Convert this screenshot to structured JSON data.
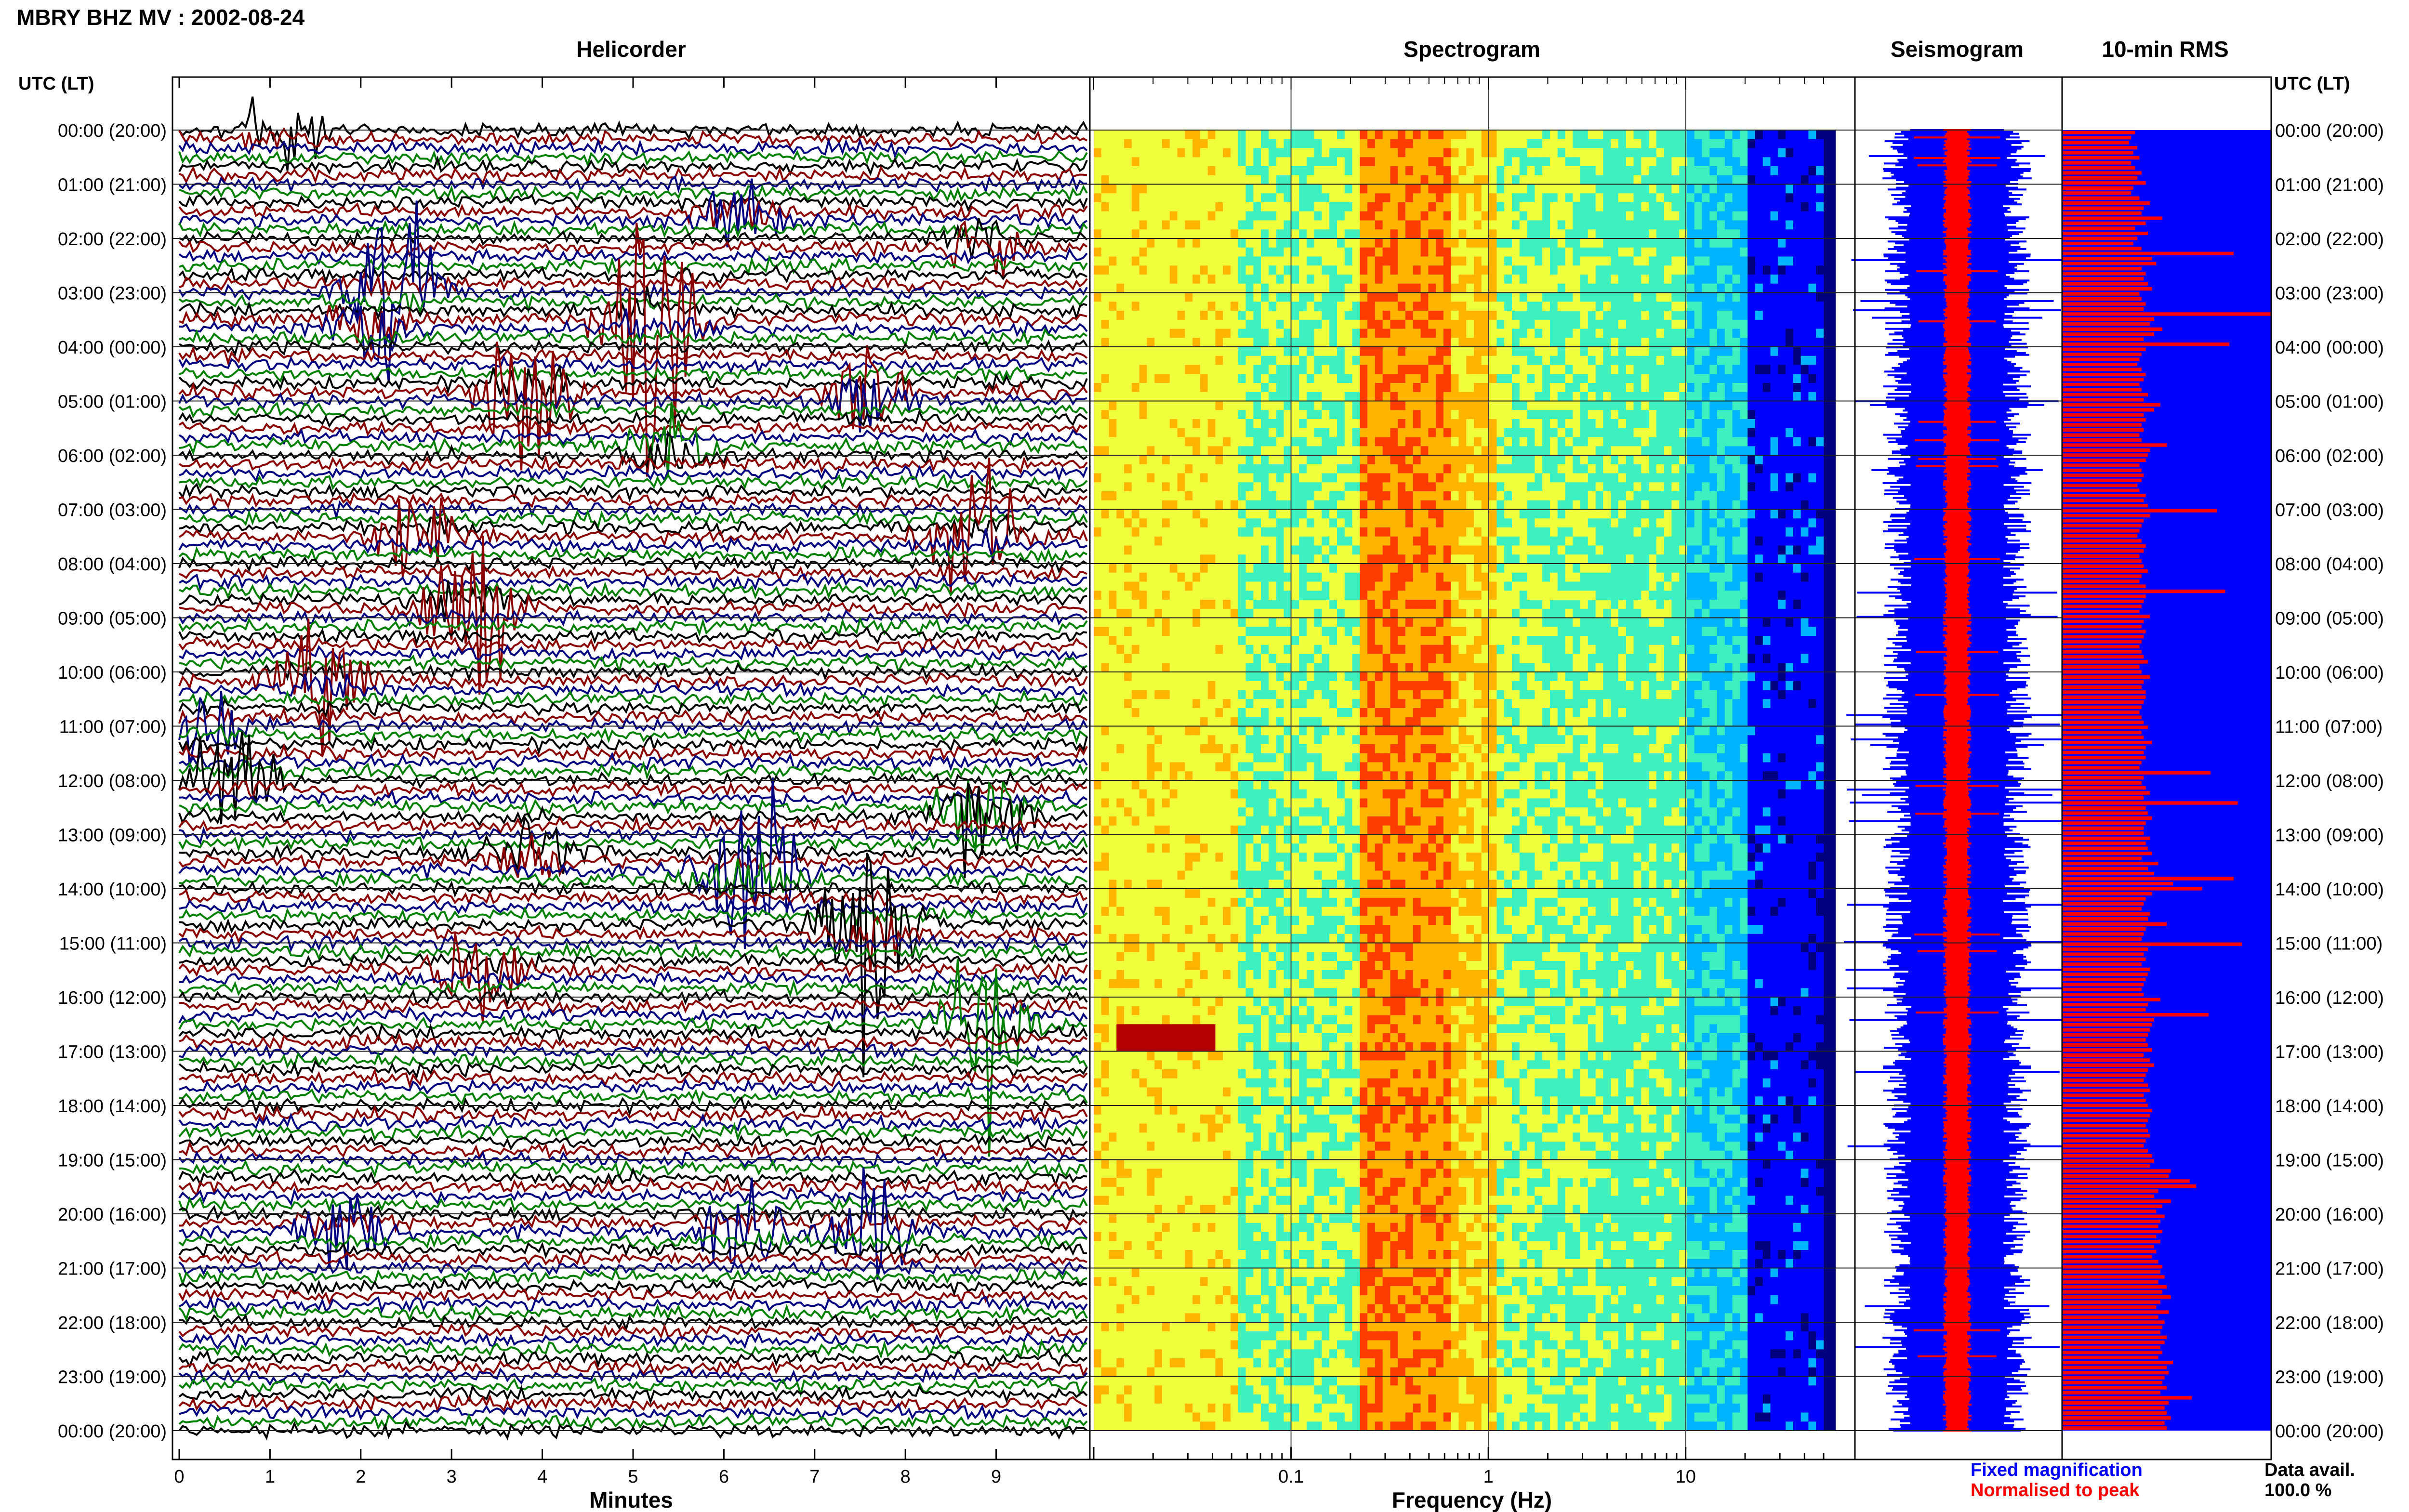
{
  "header": {
    "title": "MBRY BHZ MV : 2002-08-24"
  },
  "chart_data": {
    "type": "heatmap",
    "panels": {
      "helicorder": "Helicorder",
      "spectrogram": "Spectrogram",
      "seismogram": "Seismogram",
      "rms": "10-min RMS"
    },
    "utc_label_left": "UTC (LT)",
    "utc_label_right": "UTC (LT)",
    "time_rows": [
      "00:00 (20:00)",
      "01:00 (21:00)",
      "02:00 (22:00)",
      "03:00 (23:00)",
      "04:00 (00:00)",
      "05:00 (01:00)",
      "06:00 (02:00)",
      "07:00 (03:00)",
      "08:00 (04:00)",
      "09:00 (05:00)",
      "10:00 (06:00)",
      "11:00 (07:00)",
      "12:00 (08:00)",
      "13:00 (09:00)",
      "14:00 (10:00)",
      "15:00 (11:00)",
      "16:00 (12:00)",
      "17:00 (13:00)",
      "18:00 (14:00)",
      "19:00 (15:00)",
      "20:00 (16:00)",
      "21:00 (17:00)",
      "22:00 (18:00)",
      "23:00 (19:00)",
      "00:00 (20:00)"
    ],
    "helicorder_x": {
      "label": "Minutes",
      "ticks": [
        "0",
        "1",
        "2",
        "3",
        "4",
        "5",
        "6",
        "7",
        "8",
        "9"
      ],
      "range": [
        0,
        10
      ]
    },
    "spectrogram_x": {
      "label": "Frequency (Hz)",
      "scale": "log",
      "ticks": [
        "0.1",
        "1",
        "10"
      ],
      "range": [
        0.01,
        50
      ]
    },
    "helicorder_events": [
      {
        "hour": 0.0,
        "minute": 1.1,
        "amp": 0.9,
        "color": "#000000"
      },
      {
        "hour": 1.6,
        "minute": 6.2,
        "amp": 0.9,
        "color": "#000000"
      },
      {
        "hour": 2.1,
        "minute": 8.9,
        "amp": 1.0,
        "color": "#8b0000"
      },
      {
        "hour": 3.0,
        "minute": 2.4,
        "amp": 1.6,
        "color": "#8b0000"
      },
      {
        "hour": 3.6,
        "minute": 2.1,
        "amp": 1.1,
        "color": "#008000"
      },
      {
        "hour": 3.5,
        "minute": 5.2,
        "amp": 3.0,
        "color": "#000000"
      },
      {
        "hour": 4.8,
        "minute": 3.8,
        "amp": 1.6,
        "color": "#000080"
      },
      {
        "hour": 4.9,
        "minute": 7.6,
        "amp": 1.2,
        "color": "#008000"
      },
      {
        "hour": 5.9,
        "minute": 5.4,
        "amp": 1.0,
        "color": "#000000"
      },
      {
        "hour": 7.5,
        "minute": 8.8,
        "amp": 1.6,
        "color": "#8b0000"
      },
      {
        "hour": 7.5,
        "minute": 2.7,
        "amp": 1.1,
        "color": "#008000"
      },
      {
        "hour": 8.8,
        "minute": 3.2,
        "amp": 1.9,
        "color": "#008000"
      },
      {
        "hour": 10.2,
        "minute": 1.6,
        "amp": 1.2,
        "color": "#008000"
      },
      {
        "hour": 11.0,
        "minute": 0.3,
        "amp": 0.8,
        "color": "#000000"
      },
      {
        "hour": 12.0,
        "minute": 0.6,
        "amp": 1.3,
        "color": "#8b0000"
      },
      {
        "hour": 12.6,
        "minute": 8.8,
        "amp": 1.5,
        "color": "#8b0000"
      },
      {
        "hour": 13.4,
        "minute": 3.9,
        "amp": 1.0,
        "color": "#008000"
      },
      {
        "hour": 13.7,
        "minute": 6.3,
        "amp": 2.4,
        "color": "#8b0000"
      },
      {
        "hour": 14.7,
        "minute": 7.6,
        "amp": 2.4,
        "color": "#000080"
      },
      {
        "hour": 15.5,
        "minute": 3.3,
        "amp": 1.0,
        "color": "#000000"
      },
      {
        "hour": 16.5,
        "minute": 8.9,
        "amp": 1.6,
        "color": "#000080"
      },
      {
        "hour": 20.3,
        "minute": 1.8,
        "amp": 1.1,
        "color": "#8b0000"
      },
      {
        "hour": 20.3,
        "minute": 7.6,
        "amp": 1.2,
        "color": "#000080"
      },
      {
        "hour": 20.3,
        "minute": 6.2,
        "amp": 0.9,
        "color": "#000000"
      }
    ],
    "rms_values": [
      0.35,
      0.33,
      0.32,
      0.36,
      0.34,
      0.37,
      0.33,
      0.35,
      0.38,
      0.36,
      0.4,
      0.34,
      0.33,
      0.37,
      0.42,
      0.39,
      0.38,
      0.48,
      0.4,
      0.35,
      0.41,
      0.36,
      0.34,
      0.38,
      0.82,
      0.43,
      0.45,
      0.38,
      0.4,
      0.39,
      0.41,
      0.43,
      0.37,
      0.38,
      0.4,
      0.39,
      1.0,
      0.44,
      0.42,
      0.48,
      0.44,
      0.39,
      0.8,
      0.4,
      0.38,
      0.37,
      0.36,
      0.38,
      0.4,
      0.39,
      0.37,
      0.38,
      0.41,
      0.39,
      0.47,
      0.44,
      0.39,
      0.4,
      0.38,
      0.39,
      0.37,
      0.38,
      0.5,
      0.42,
      0.41,
      0.4,
      0.37,
      0.38,
      0.39,
      0.38,
      0.36,
      0.37,
      0.4,
      0.39,
      0.41,
      0.74,
      0.42,
      0.39,
      0.38,
      0.37,
      0.36,
      0.38,
      0.4,
      0.39,
      0.37,
      0.38,
      0.39,
      0.41,
      0.38,
      0.37,
      0.4,
      0.78,
      0.4,
      0.39,
      0.38,
      0.37,
      0.42,
      0.39,
      0.38,
      0.4,
      0.39,
      0.38,
      0.37,
      0.38,
      0.39,
      0.41,
      0.37,
      0.38,
      0.42,
      0.39,
      0.38,
      0.4,
      0.4,
      0.39,
      0.38,
      0.37,
      0.38,
      0.39,
      0.41,
      0.38,
      0.39,
      0.43,
      0.4,
      0.39,
      0.4,
      0.38,
      0.37,
      0.71,
      0.39,
      0.38,
      0.4,
      0.42,
      0.39,
      0.84,
      0.4,
      0.41,
      0.43,
      0.4,
      0.39,
      0.39,
      0.42,
      0.4,
      0.41,
      0.43,
      0.38,
      0.46,
      0.41,
      0.44,
      0.82,
      0.53,
      0.67,
      0.43,
      0.4,
      0.39,
      0.38,
      0.42,
      0.41,
      0.5,
      0.4,
      0.39,
      0.38,
      0.86,
      0.41,
      0.39,
      0.4,
      0.38,
      0.42,
      0.41,
      0.4,
      0.39,
      0.38,
      0.39,
      0.47,
      0.41,
      0.4,
      0.7,
      0.44,
      0.43,
      0.42,
      0.41,
      0.4,
      0.41,
      0.43,
      0.39,
      0.42,
      0.44,
      0.41,
      0.4,
      0.39,
      0.41,
      0.42,
      0.39,
      0.4,
      0.41,
      0.43,
      0.42,
      0.41,
      0.4,
      0.41,
      0.42,
      0.4,
      0.39,
      0.41,
      0.43,
      0.44,
      0.42,
      0.52,
      0.51,
      0.61,
      0.64,
      0.46,
      0.44,
      0.52,
      0.48,
      0.45,
      0.49,
      0.47,
      0.46,
      0.48,
      0.45,
      0.47,
      0.44,
      0.45,
      0.43,
      0.46,
      0.48,
      0.47,
      0.49,
      0.46,
      0.5,
      0.48,
      0.52,
      0.47,
      0.45,
      0.51,
      0.46,
      0.49,
      0.48,
      0.47,
      0.5,
      0.49,
      0.47,
      0.48,
      0.46,
      0.53,
      0.5,
      0.51,
      0.49,
      0.48,
      0.5,
      0.47,
      0.62,
      0.51,
      0.49,
      0.5,
      0.52,
      0.49,
      0.5
    ],
    "legend": {
      "fixed": "Fixed magnification",
      "fixed_color": "#0000ff",
      "normalised": "Normalised to peak",
      "normalised_color": "#ff0000"
    },
    "data_availability": {
      "label": "Data avail.",
      "value": "100.0 %"
    },
    "trace_colors": [
      "#000000",
      "#8b0000",
      "#000080",
      "#008000"
    ],
    "colormap": [
      "#00007f",
      "#0000ff",
      "#00b4ff",
      "#3cf0c0",
      "#f0ff3c",
      "#ffb400",
      "#ff3c00",
      "#b40000"
    ]
  }
}
